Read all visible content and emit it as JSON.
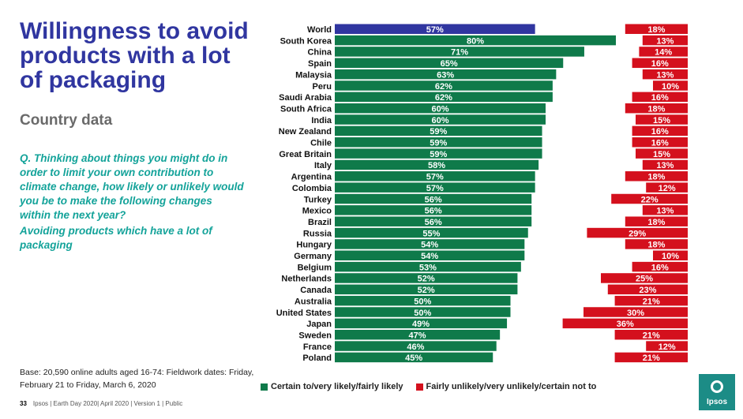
{
  "title": "Willingness to avoid products with a lot of packaging",
  "subtitle": "Country data",
  "question": "Q. Thinking about things you might do in order to limit your own contribution to climate change, how likely or unlikely would you be to make the following changes within the next year?",
  "item": "Avoiding products which have a lot of packaging",
  "base_note": "Base: 20,590 online adults aged 16-74: Fieldwork dates: Friday, February 21 to Friday, March 6, 2020",
  "footer": {
    "page": "33",
    "text": "Ipsos | Earth Day 2020| April 2020 | Version 1 | Public"
  },
  "logo": "Ipsos",
  "colors": {
    "likely": "#0f7a4a",
    "world": "#3036a0",
    "unlikely": "#d4101d"
  },
  "chart_data": {
    "type": "bar",
    "categories": [
      "World",
      "South Korea",
      "China",
      "Spain",
      "Malaysia",
      "Peru",
      "Saudi Arabia",
      "South Africa",
      "India",
      "New Zealand",
      "Chile",
      "Great Britain",
      "Italy",
      "Argentina",
      "Colombia",
      "Turkey",
      "Mexico",
      "Brazil",
      "Russia",
      "Hungary",
      "Germany",
      "Belgium",
      "Netherlands",
      "Canada",
      "Australia",
      "United States",
      "Japan",
      "Sweden",
      "France",
      "Poland"
    ],
    "series": [
      {
        "name": "Certain to/very likely/fairly likely",
        "values": [
          57,
          80,
          71,
          65,
          63,
          62,
          62,
          60,
          60,
          59,
          59,
          59,
          58,
          57,
          57,
          56,
          56,
          56,
          55,
          54,
          54,
          53,
          52,
          52,
          50,
          50,
          49,
          47,
          46,
          45
        ]
      },
      {
        "name": "Fairly unlikely/very unlikely/certain not to",
        "values": [
          18,
          13,
          14,
          16,
          13,
          10,
          16,
          18,
          15,
          16,
          16,
          15,
          13,
          18,
          12,
          22,
          13,
          18,
          29,
          18,
          10,
          16,
          25,
          23,
          21,
          30,
          36,
          21,
          12,
          21
        ]
      }
    ],
    "value_suffix": "%",
    "legend": "bottom"
  }
}
